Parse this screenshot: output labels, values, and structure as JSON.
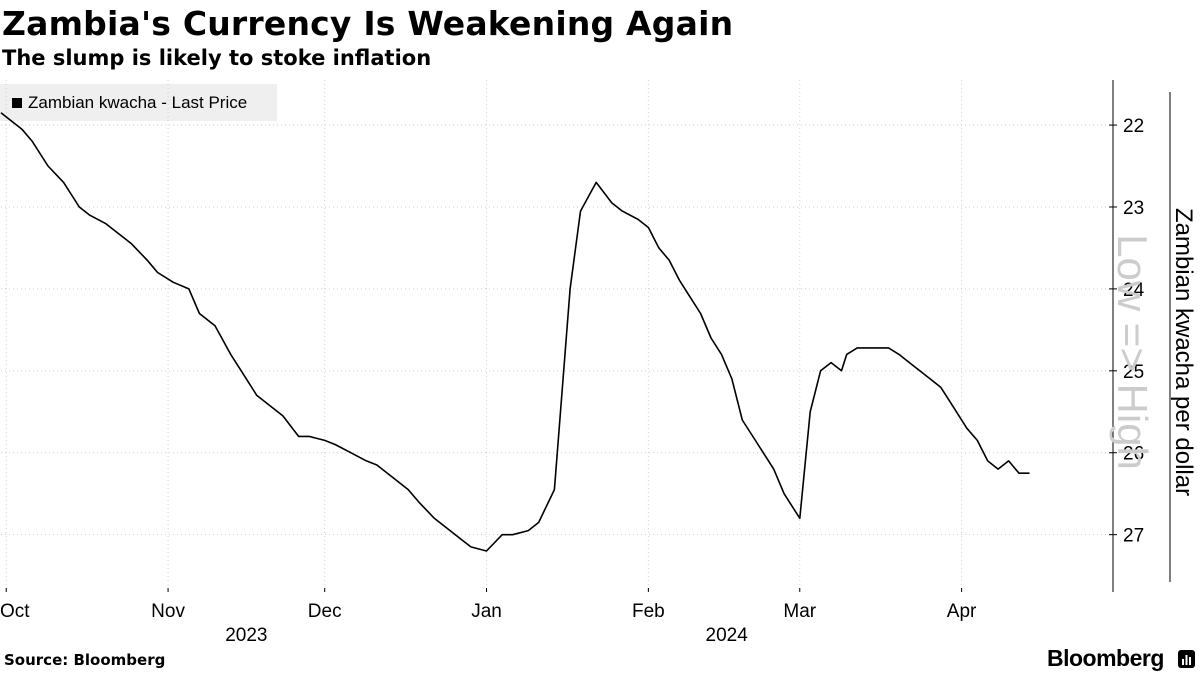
{
  "header": {
    "title": "Zambia's Currency Is Weakening Again",
    "subtitle": "The slump is likely to stoke inflation"
  },
  "footer": {
    "source": "Source: Bloomberg",
    "brand": "Bloomberg"
  },
  "colors": {
    "line": "#000000",
    "legend_bg": "#efefef",
    "watermark": "#cccccc"
  },
  "chart_data": {
    "type": "line",
    "title": "Zambia's Currency Is Weakening Again",
    "subtitle": "The slump is likely to stoke inflation",
    "ylabel": "Zambian kwacha per dollar",
    "ylabel_hint": "Low => High",
    "y_inverted": true,
    "ylim": [
      21.45,
      27.7
    ],
    "yticks": [
      22,
      23,
      24,
      25,
      26,
      27
    ],
    "grid": true,
    "legend": "top-left",
    "x_domain": [
      "2023-09-30",
      "2024-04-30"
    ],
    "months": [
      {
        "label": "Oct",
        "date": "2023-10-01"
      },
      {
        "label": "Nov",
        "date": "2023-11-01"
      },
      {
        "label": "Dec",
        "date": "2023-12-01"
      },
      {
        "label": "Jan",
        "date": "2024-01-01"
      },
      {
        "label": "Feb",
        "date": "2024-02-01"
      },
      {
        "label": "Mar",
        "date": "2024-03-01"
      },
      {
        "label": "Apr",
        "date": "2024-04-01"
      }
    ],
    "years": [
      {
        "label": "2023",
        "date": "2023-11-16"
      },
      {
        "label": "2024",
        "date": "2024-02-16"
      }
    ],
    "series": [
      {
        "name": "Zambian kwacha - Last Price",
        "x": [
          "2023-09-30",
          "2023-10-02",
          "2023-10-04",
          "2023-10-06",
          "2023-10-09",
          "2023-10-12",
          "2023-10-15",
          "2023-10-17",
          "2023-10-20",
          "2023-10-23",
          "2023-10-25",
          "2023-10-28",
          "2023-10-30",
          "2023-11-02",
          "2023-11-05",
          "2023-11-07",
          "2023-11-10",
          "2023-11-13",
          "2023-11-15",
          "2023-11-18",
          "2023-11-20",
          "2023-11-23",
          "2023-11-26",
          "2023-11-28",
          "2023-12-01",
          "2023-12-03",
          "2023-12-06",
          "2023-12-09",
          "2023-12-11",
          "2023-12-14",
          "2023-12-17",
          "2023-12-19",
          "2023-12-22",
          "2023-12-24",
          "2023-12-27",
          "2023-12-29",
          "2024-01-01",
          "2024-01-04",
          "2024-01-06",
          "2024-01-09",
          "2024-01-11",
          "2024-01-14",
          "2024-01-17",
          "2024-01-19",
          "2024-01-22",
          "2024-01-25",
          "2024-01-27",
          "2024-01-30",
          "2024-02-01",
          "2024-02-03",
          "2024-02-05",
          "2024-02-07",
          "2024-02-09",
          "2024-02-11",
          "2024-02-13",
          "2024-02-15",
          "2024-02-17",
          "2024-02-19",
          "2024-02-22",
          "2024-02-25",
          "2024-02-27",
          "2024-03-01",
          "2024-03-03",
          "2024-03-05",
          "2024-03-07",
          "2024-03-09",
          "2024-03-10",
          "2024-03-12",
          "2024-03-14",
          "2024-03-16",
          "2024-03-18",
          "2024-03-20",
          "2024-03-22",
          "2024-03-24",
          "2024-03-26",
          "2024-03-28",
          "2024-03-30",
          "2024-04-02",
          "2024-04-04",
          "2024-04-06",
          "2024-04-08",
          "2024-04-10",
          "2024-04-12",
          "2024-04-14"
        ],
        "values": [
          21.85,
          21.95,
          22.05,
          22.2,
          22.5,
          22.7,
          23.0,
          23.1,
          23.2,
          23.35,
          23.45,
          23.65,
          23.8,
          23.92,
          24.0,
          24.3,
          24.45,
          24.8,
          25.0,
          25.3,
          25.4,
          25.55,
          25.8,
          25.8,
          25.85,
          25.9,
          26.0,
          26.1,
          26.15,
          26.3,
          26.45,
          26.6,
          26.8,
          26.9,
          27.05,
          27.15,
          27.2,
          27.0,
          27.0,
          26.95,
          26.85,
          26.45,
          24.0,
          23.05,
          22.7,
          22.95,
          23.05,
          23.15,
          23.25,
          23.5,
          23.65,
          23.9,
          24.1,
          24.3,
          24.6,
          24.8,
          25.1,
          25.6,
          25.9,
          26.2,
          26.5,
          26.8,
          25.5,
          25.0,
          24.9,
          25.0,
          24.8,
          24.72,
          24.72,
          24.72,
          24.72,
          24.8,
          24.9,
          25.0,
          25.1,
          25.2,
          25.4,
          25.7,
          25.85,
          26.1,
          26.2,
          26.1,
          26.25,
          26.25
        ]
      }
    ]
  }
}
